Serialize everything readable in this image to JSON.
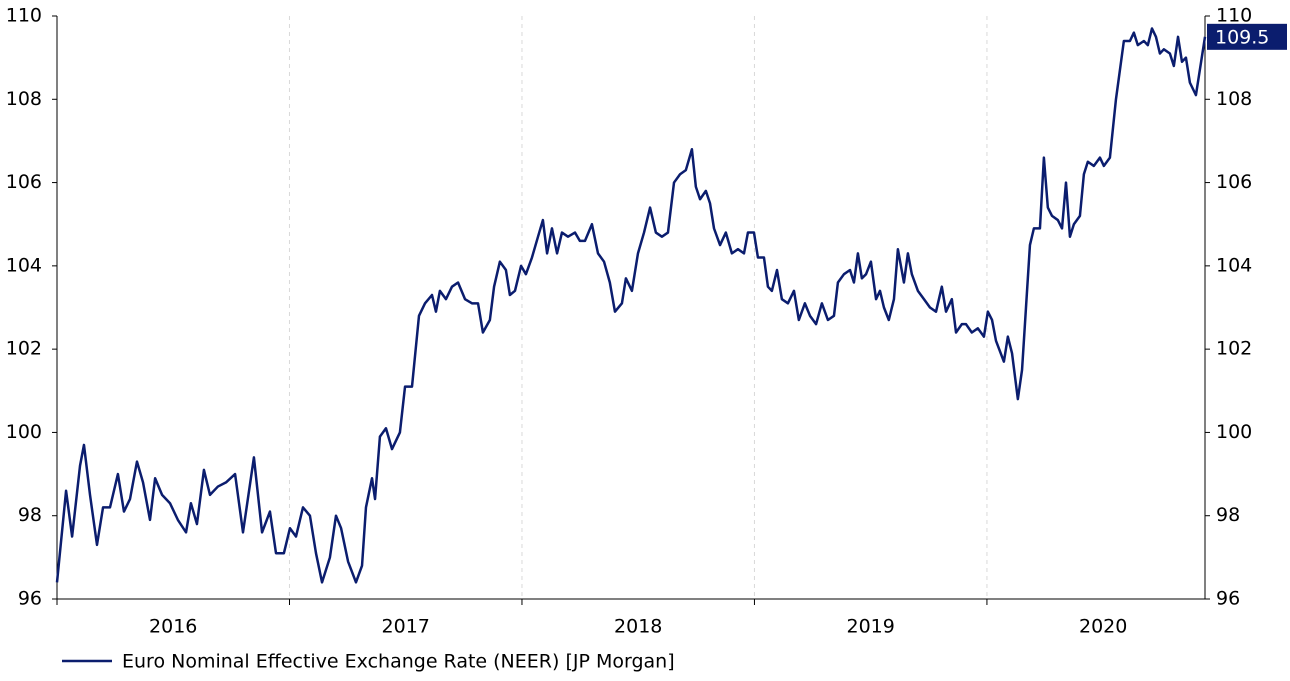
{
  "chart_data": {
    "type": "line",
    "x": [
      2016.0,
      2016.039,
      2016.065,
      2016.099,
      2016.116,
      2016.142,
      2016.172,
      2016.198,
      2016.228,
      2016.262,
      2016.288,
      2016.314,
      2016.344,
      2016.37,
      2016.4,
      2016.422,
      2016.452,
      2016.486,
      2016.52,
      2016.555,
      2016.576,
      2016.602,
      2016.632,
      2016.658,
      2016.692,
      2016.727,
      2016.766,
      2016.8,
      2016.847,
      2016.882,
      2016.916,
      2016.942,
      2016.976,
      2017.002,
      2017.028,
      2017.058,
      2017.088,
      2017.114,
      2017.14,
      2017.174,
      2017.2,
      2017.222,
      2017.252,
      2017.286,
      2017.312,
      2017.329,
      2017.355,
      2017.368,
      2017.389,
      2017.415,
      2017.441,
      2017.475,
      2017.497,
      2017.527,
      2017.557,
      2017.583,
      2017.613,
      2017.63,
      2017.647,
      2017.673,
      2017.699,
      2017.725,
      2017.755,
      2017.785,
      2017.811,
      2017.832,
      2017.862,
      2017.88,
      2017.905,
      2017.931,
      2017.948,
      2017.97,
      2017.996,
      2018.017,
      2018.043,
      2018.069,
      2018.09,
      2018.108,
      2018.129,
      2018.151,
      2018.172,
      2018.198,
      2018.228,
      2018.249,
      2018.271,
      2018.301,
      2018.327,
      2018.353,
      2018.378,
      2018.4,
      2018.43,
      2018.447,
      2018.473,
      2018.499,
      2018.525,
      2018.551,
      2018.576,
      2018.602,
      2018.628,
      2018.654,
      2018.68,
      2018.705,
      2018.731,
      2018.748,
      2018.766,
      2018.791,
      2018.809,
      2018.826,
      2018.852,
      2018.877,
      2018.903,
      2018.929,
      2018.955,
      2018.972,
      2018.998,
      2019.015,
      2019.041,
      2019.058,
      2019.075,
      2019.097,
      2019.118,
      2019.144,
      2019.17,
      2019.191,
      2019.217,
      2019.239,
      2019.265,
      2019.29,
      2019.316,
      2019.342,
      2019.359,
      2019.385,
      2019.411,
      2019.428,
      2019.445,
      2019.462,
      2019.48,
      2019.501,
      2019.523,
      2019.54,
      2019.557,
      2019.578,
      2019.6,
      2019.617,
      2019.643,
      2019.66,
      2019.677,
      2019.703,
      2019.729,
      2019.755,
      2019.781,
      2019.806,
      2019.824,
      2019.849,
      2019.867,
      2019.892,
      2019.91,
      2019.935,
      2019.961,
      2019.987,
      2020.004,
      2020.022,
      2020.039,
      2020.073,
      2020.09,
      2020.108,
      2020.133,
      2020.151,
      2020.168,
      2020.185,
      2020.202,
      2020.228,
      2020.245,
      2020.262,
      2020.28,
      2020.305,
      2020.323,
      2020.34,
      2020.357,
      2020.374,
      2020.4,
      2020.417,
      2020.434,
      2020.46,
      2020.486,
      2020.503,
      2020.529,
      2020.555,
      2020.589,
      2020.615,
      2020.632,
      2020.649,
      2020.675,
      2020.692,
      2020.71,
      2020.727,
      2020.744,
      2020.761,
      2020.787,
      2020.804,
      2020.822,
      2020.839,
      2020.856,
      2020.873,
      2020.899,
      2020.938
    ],
    "series": [
      {
        "name": "Euro Nominal Effective Exchange Rate (NEER) [JP Morgan]",
        "color": "#0b1d6e",
        "values": [
          96.4,
          98.6,
          97.5,
          99.2,
          99.7,
          98.5,
          97.3,
          98.2,
          98.2,
          99.0,
          98.1,
          98.4,
          99.3,
          98.8,
          97.9,
          98.9,
          98.5,
          98.3,
          97.9,
          97.6,
          98.3,
          97.8,
          99.1,
          98.5,
          98.7,
          98.8,
          99.0,
          97.6,
          99.4,
          97.6,
          98.1,
          97.1,
          97.1,
          97.7,
          97.5,
          98.2,
          98.0,
          97.1,
          96.4,
          97.0,
          98.0,
          97.7,
          96.9,
          96.4,
          96.8,
          98.2,
          98.9,
          98.4,
          99.9,
          100.1,
          99.6,
          100.0,
          101.1,
          101.1,
          102.8,
          103.1,
          103.3,
          102.9,
          103.4,
          103.2,
          103.5,
          103.6,
          103.2,
          103.1,
          103.1,
          102.4,
          102.7,
          103.5,
          104.1,
          103.9,
          103.3,
          103.4,
          104.0,
          103.8,
          104.2,
          104.7,
          105.1,
          104.3,
          104.9,
          104.3,
          104.8,
          104.7,
          104.8,
          104.6,
          104.6,
          105.0,
          104.3,
          104.1,
          103.6,
          102.9,
          103.1,
          103.7,
          103.4,
          104.3,
          104.8,
          105.4,
          104.8,
          104.7,
          104.8,
          106.0,
          106.2,
          106.3,
          106.8,
          105.9,
          105.6,
          105.8,
          105.5,
          104.9,
          104.5,
          104.8,
          104.3,
          104.4,
          104.3,
          104.8,
          104.8,
          104.2,
          104.2,
          103.5,
          103.4,
          103.9,
          103.2,
          103.1,
          103.4,
          102.7,
          103.1,
          102.8,
          102.6,
          103.1,
          102.7,
          102.8,
          103.6,
          103.8,
          103.9,
          103.6,
          104.3,
          103.7,
          103.8,
          104.1,
          103.2,
          103.4,
          103.0,
          102.7,
          103.2,
          104.4,
          103.6,
          104.3,
          103.8,
          103.4,
          103.2,
          103.0,
          102.9,
          103.5,
          102.9,
          103.2,
          102.4,
          102.6,
          102.6,
          102.4,
          102.5,
          102.3,
          102.9,
          102.7,
          102.2,
          101.7,
          102.3,
          101.9,
          100.8,
          101.5,
          103.0,
          104.5,
          104.9,
          104.9,
          106.6,
          105.4,
          105.2,
          105.1,
          104.9,
          106.0,
          104.7,
          105.0,
          105.2,
          106.2,
          106.5,
          106.4,
          106.6,
          106.4,
          106.6,
          108.0,
          109.4,
          109.4,
          109.6,
          109.3,
          109.4,
          109.3,
          109.7,
          109.5,
          109.1,
          109.2,
          109.1,
          108.8,
          109.5,
          108.9,
          109.0,
          108.4,
          108.1,
          109.5
        ]
      }
    ],
    "xlim": [
      2016.0,
      2020.938
    ],
    "xticks": [
      2016,
      2017,
      2018,
      2019,
      2020
    ],
    "ylim": [
      96,
      110
    ],
    "yticks": [
      96,
      98,
      100,
      102,
      104,
      106,
      108,
      110
    ],
    "grid": true,
    "legend": "bottom-left"
  }
}
